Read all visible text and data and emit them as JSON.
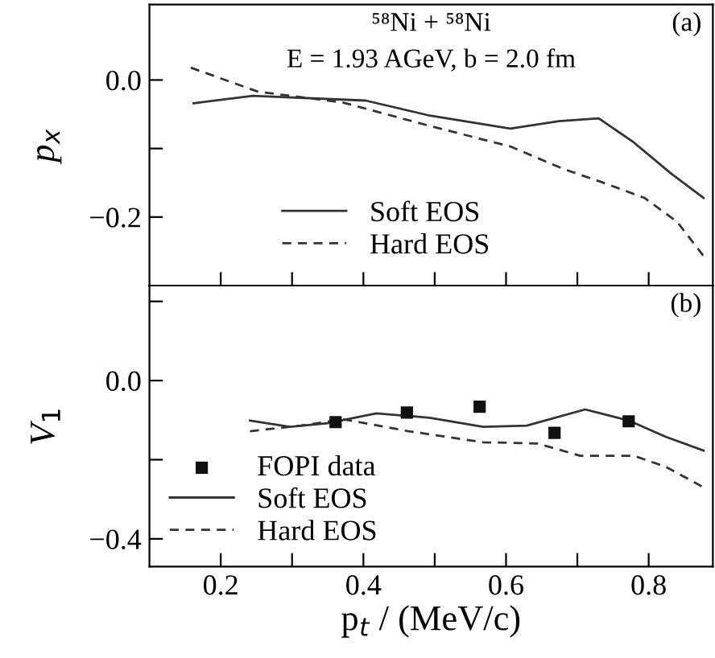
{
  "chart_data": [
    {
      "type": "line",
      "ylabel": "p$_{x}$",
      "annotations": [
        "⁵⁸Ni + ⁵⁸Ni",
        "E = 1.93 AGeV, b = 2.0 fm",
        "(a)"
      ],
      "xlim": [
        0.1,
        0.89
      ],
      "xticks": [
        {
          "value": 0.2,
          "label": null
        },
        {
          "value": 0.3,
          "label": null
        },
        {
          "value": 0.4,
          "label": null
        },
        {
          "value": 0.5,
          "label": null
        },
        {
          "value": 0.6,
          "label": null
        },
        {
          "value": 0.7,
          "label": null
        },
        {
          "value": 0.8,
          "label": null
        }
      ],
      "ylim": [
        -0.3,
        0.11
      ],
      "yticks": [
        {
          "value": -0.2,
          "label": "−0.2"
        },
        {
          "value": -0.1,
          "label": null
        },
        {
          "value": 0.0,
          "label": "0.0"
        }
      ],
      "tick_labels": "y",
      "legend": "bottom",
      "grid": false,
      "series": [
        {
          "name": "Soft EOS",
          "color": "#333333",
          "line_style": "solid",
          "x": [
            0.162,
            0.245,
            0.403,
            0.493,
            0.606,
            0.674,
            0.73,
            0.779,
            0.832,
            0.877
          ],
          "values": [
            -0.034,
            -0.023,
            -0.03,
            -0.052,
            -0.071,
            -0.06,
            -0.056,
            -0.091,
            -0.137,
            -0.172
          ]
        },
        {
          "name": "Hard EOS",
          "color": "#333333",
          "line_style": "dashed",
          "x": [
            0.158,
            0.252,
            0.372,
            0.493,
            0.606,
            0.681,
            0.734,
            0.794,
            0.84,
            0.877
          ],
          "values": [
            0.018,
            -0.017,
            -0.033,
            -0.067,
            -0.097,
            -0.13,
            -0.149,
            -0.172,
            -0.207,
            -0.257
          ]
        }
      ]
    },
    {
      "type": "line",
      "ylabel": "V$_{1}$",
      "xlabel": "p$_{t}$ / (MeV/c)",
      "annotations": [
        "(b)"
      ],
      "xlim": [
        0.1,
        0.89
      ],
      "xticks": [
        0.2,
        {
          "value": 0.3,
          "label": null
        },
        0.4,
        {
          "value": 0.5,
          "label": null
        },
        0.6,
        {
          "value": 0.7,
          "label": null
        },
        0.8
      ],
      "ylim": [
        -0.47,
        0.24
      ],
      "yticks": [
        {
          "value": -0.4,
          "label": "−0.4"
        },
        {
          "value": -0.2,
          "label": null
        },
        {
          "value": 0.0,
          "label": "0.0"
        },
        {
          "value": 0.2,
          "label": null
        }
      ],
      "legend": "bottom left",
      "grid": false,
      "series": [
        {
          "name": "FOPI data",
          "type": "scatter",
          "marker": "square",
          "color": "#111111",
          "x": [
            0.361,
            0.461,
            0.563,
            0.668,
            0.772
          ],
          "values": [
            -0.105,
            -0.081,
            -0.066,
            -0.132,
            -0.103
          ]
        },
        {
          "name": "Soft EOS",
          "color": "#333333",
          "line_style": "solid",
          "x": [
            0.241,
            0.297,
            0.35,
            0.418,
            0.493,
            0.568,
            0.629,
            0.711,
            0.772,
            0.824,
            0.877
          ],
          "values": [
            -0.101,
            -0.117,
            -0.108,
            -0.083,
            -0.094,
            -0.117,
            -0.114,
            -0.073,
            -0.101,
            -0.142,
            -0.177
          ]
        },
        {
          "name": "Hard EOS",
          "color": "#333333",
          "line_style": "dashed",
          "x": [
            0.241,
            0.312,
            0.372,
            0.463,
            0.568,
            0.644,
            0.704,
            0.779,
            0.824,
            0.877
          ],
          "values": [
            -0.128,
            -0.114,
            -0.098,
            -0.128,
            -0.156,
            -0.159,
            -0.19,
            -0.19,
            -0.218,
            -0.27
          ]
        }
      ]
    }
  ]
}
